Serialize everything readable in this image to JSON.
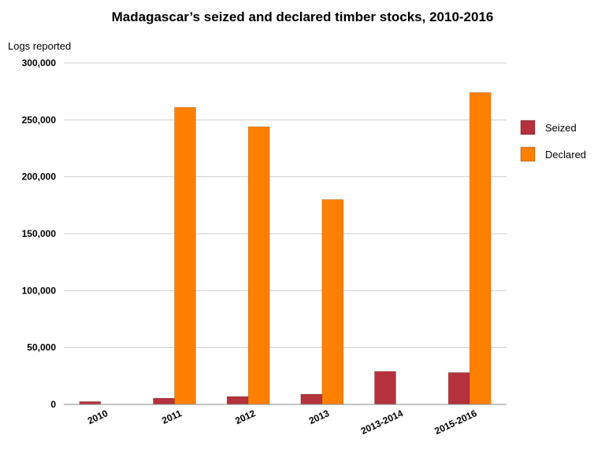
{
  "chart_data": {
    "type": "bar",
    "title": "Madagascar’s seized and declared timber stocks, 2010-2016",
    "ylabel": "Logs reported",
    "xlabel": "",
    "categories": [
      "2010",
      "2011",
      "2012",
      "2013",
      "2013-2014",
      "2015-2016"
    ],
    "series": [
      {
        "name": "Seized",
        "color": "#b5323c",
        "values": [
          2500,
          5500,
          7000,
          9000,
          29000,
          28000
        ]
      },
      {
        "name": "Declared",
        "color": "#ff7f00",
        "values": [
          0,
          261000,
          244000,
          180000,
          0,
          274000
        ]
      }
    ],
    "ylim": [
      0,
      300000
    ],
    "yticks": [
      "0",
      "50,000",
      "100,000",
      "150,000",
      "200,000",
      "250,000",
      "300,000"
    ],
    "grid": true,
    "legend": "right"
  }
}
